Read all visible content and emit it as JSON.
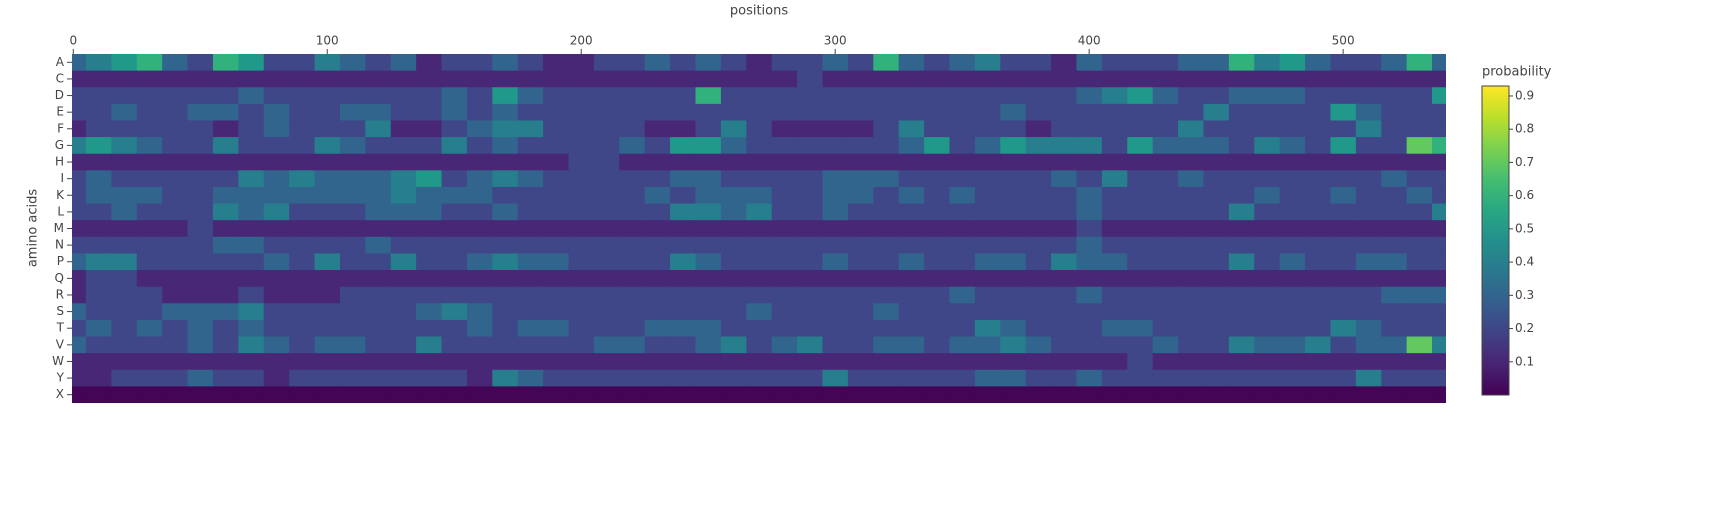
{
  "chart_data": {
    "type": "heatmap",
    "xlabel": "positions",
    "ylabel": "amino acids",
    "colorbar_title": "probability",
    "colorscale": "Viridis",
    "xlim": [
      -0.5,
      540.5
    ],
    "xticks": [
      0,
      100,
      200,
      300,
      400,
      500
    ],
    "zlim": [
      0,
      0.93
    ],
    "colorbar_ticks": [
      0.1,
      0.2,
      0.3,
      0.4,
      0.5,
      0.6,
      0.7,
      0.8,
      0.9
    ],
    "x": [
      0,
      10,
      20,
      30,
      40,
      50,
      60,
      70,
      80,
      90,
      100,
      110,
      120,
      130,
      140,
      150,
      160,
      170,
      180,
      190,
      200,
      210,
      220,
      230,
      240,
      250,
      260,
      270,
      280,
      290,
      300,
      310,
      320,
      330,
      340,
      350,
      360,
      370,
      380,
      390,
      400,
      410,
      420,
      430,
      440,
      450,
      460,
      470,
      480,
      490,
      500,
      510,
      520,
      530,
      540
    ],
    "y": [
      "A",
      "C",
      "D",
      "E",
      "F",
      "G",
      "H",
      "I",
      "K",
      "L",
      "M",
      "N",
      "P",
      "Q",
      "R",
      "S",
      "T",
      "V",
      "W",
      "Y",
      "X"
    ],
    "z": [
      [
        0.3,
        0.4,
        0.5,
        0.6,
        0.3,
        0.2,
        0.6,
        0.5,
        0.2,
        0.2,
        0.4,
        0.3,
        0.2,
        0.3,
        0.1,
        0.2,
        0.2,
        0.3,
        0.2,
        0.1,
        0.1,
        0.2,
        0.2,
        0.3,
        0.2,
        0.3,
        0.2,
        0.1,
        0.2,
        0.2,
        0.3,
        0.2,
        0.6,
        0.3,
        0.2,
        0.3,
        0.4,
        0.2,
        0.2,
        0.1,
        0.3,
        0.2,
        0.2,
        0.2,
        0.3,
        0.3,
        0.6,
        0.4,
        0.5,
        0.3,
        0.2,
        0.2,
        0.3,
        0.6,
        0.3
      ],
      [
        0.1,
        0.1,
        0.1,
        0.1,
        0.1,
        0.1,
        0.1,
        0.1,
        0.1,
        0.1,
        0.1,
        0.1,
        0.1,
        0.1,
        0.1,
        0.1,
        0.1,
        0.1,
        0.1,
        0.1,
        0.1,
        0.1,
        0.1,
        0.1,
        0.1,
        0.1,
        0.1,
        0.1,
        0.1,
        0.2,
        0.1,
        0.1,
        0.1,
        0.1,
        0.1,
        0.1,
        0.1,
        0.1,
        0.1,
        0.1,
        0.1,
        0.1,
        0.1,
        0.1,
        0.1,
        0.1,
        0.1,
        0.1,
        0.1,
        0.1,
        0.1,
        0.1,
        0.1,
        0.1,
        0.1
      ],
      [
        0.2,
        0.2,
        0.2,
        0.2,
        0.2,
        0.2,
        0.2,
        0.3,
        0.2,
        0.2,
        0.2,
        0.2,
        0.2,
        0.2,
        0.2,
        0.3,
        0.2,
        0.5,
        0.3,
        0.2,
        0.2,
        0.2,
        0.2,
        0.2,
        0.2,
        0.6,
        0.2,
        0.2,
        0.2,
        0.2,
        0.2,
        0.2,
        0.2,
        0.2,
        0.2,
        0.2,
        0.2,
        0.2,
        0.2,
        0.2,
        0.3,
        0.4,
        0.5,
        0.3,
        0.2,
        0.2,
        0.3,
        0.3,
        0.3,
        0.2,
        0.2,
        0.2,
        0.2,
        0.2,
        0.5
      ],
      [
        0.2,
        0.2,
        0.3,
        0.2,
        0.2,
        0.3,
        0.3,
        0.2,
        0.3,
        0.2,
        0.2,
        0.3,
        0.3,
        0.2,
        0.2,
        0.3,
        0.2,
        0.3,
        0.2,
        0.2,
        0.2,
        0.2,
        0.2,
        0.2,
        0.2,
        0.2,
        0.2,
        0.2,
        0.2,
        0.2,
        0.2,
        0.2,
        0.2,
        0.2,
        0.2,
        0.2,
        0.2,
        0.3,
        0.2,
        0.2,
        0.2,
        0.2,
        0.2,
        0.2,
        0.2,
        0.4,
        0.2,
        0.2,
        0.2,
        0.2,
        0.5,
        0.3,
        0.2,
        0.2,
        0.2
      ],
      [
        0.1,
        0.2,
        0.2,
        0.2,
        0.2,
        0.2,
        0.1,
        0.2,
        0.3,
        0.2,
        0.2,
        0.2,
        0.4,
        0.1,
        0.1,
        0.2,
        0.3,
        0.4,
        0.4,
        0.2,
        0.2,
        0.2,
        0.2,
        0.1,
        0.1,
        0.2,
        0.4,
        0.2,
        0.1,
        0.1,
        0.1,
        0.1,
        0.2,
        0.4,
        0.2,
        0.2,
        0.2,
        0.2,
        0.1,
        0.2,
        0.2,
        0.2,
        0.2,
        0.2,
        0.4,
        0.2,
        0.2,
        0.2,
        0.2,
        0.2,
        0.2,
        0.4,
        0.2,
        0.2,
        0.2
      ],
      [
        0.4,
        0.5,
        0.4,
        0.3,
        0.2,
        0.2,
        0.4,
        0.2,
        0.2,
        0.2,
        0.4,
        0.3,
        0.2,
        0.2,
        0.2,
        0.4,
        0.2,
        0.3,
        0.2,
        0.2,
        0.2,
        0.2,
        0.3,
        0.2,
        0.5,
        0.5,
        0.3,
        0.2,
        0.2,
        0.2,
        0.2,
        0.2,
        0.2,
        0.3,
        0.5,
        0.2,
        0.3,
        0.5,
        0.4,
        0.4,
        0.4,
        0.2,
        0.5,
        0.3,
        0.3,
        0.3,
        0.2,
        0.4,
        0.3,
        0.2,
        0.5,
        0.2,
        0.2,
        0.7,
        0.6
      ],
      [
        0.1,
        0.1,
        0.1,
        0.1,
        0.1,
        0.1,
        0.1,
        0.1,
        0.1,
        0.1,
        0.1,
        0.1,
        0.1,
        0.1,
        0.1,
        0.1,
        0.1,
        0.1,
        0.1,
        0.1,
        0.2,
        0.2,
        0.1,
        0.1,
        0.1,
        0.1,
        0.1,
        0.1,
        0.1,
        0.1,
        0.1,
        0.1,
        0.1,
        0.1,
        0.1,
        0.1,
        0.1,
        0.1,
        0.1,
        0.1,
        0.1,
        0.1,
        0.1,
        0.1,
        0.1,
        0.1,
        0.1,
        0.1,
        0.1,
        0.1,
        0.1,
        0.1,
        0.1,
        0.1,
        0.1
      ],
      [
        0.2,
        0.3,
        0.2,
        0.2,
        0.2,
        0.2,
        0.2,
        0.4,
        0.3,
        0.4,
        0.3,
        0.3,
        0.3,
        0.4,
        0.5,
        0.2,
        0.3,
        0.4,
        0.3,
        0.2,
        0.2,
        0.2,
        0.2,
        0.2,
        0.3,
        0.3,
        0.2,
        0.2,
        0.2,
        0.2,
        0.3,
        0.3,
        0.3,
        0.2,
        0.2,
        0.2,
        0.2,
        0.2,
        0.2,
        0.3,
        0.2,
        0.4,
        0.2,
        0.2,
        0.3,
        0.2,
        0.2,
        0.2,
        0.2,
        0.2,
        0.2,
        0.2,
        0.3,
        0.2,
        0.2
      ],
      [
        0.2,
        0.3,
        0.3,
        0.3,
        0.2,
        0.2,
        0.3,
        0.3,
        0.3,
        0.3,
        0.3,
        0.3,
        0.3,
        0.4,
        0.3,
        0.3,
        0.3,
        0.2,
        0.2,
        0.2,
        0.2,
        0.2,
        0.2,
        0.3,
        0.2,
        0.3,
        0.3,
        0.3,
        0.2,
        0.2,
        0.3,
        0.3,
        0.2,
        0.3,
        0.2,
        0.3,
        0.2,
        0.2,
        0.2,
        0.2,
        0.3,
        0.2,
        0.2,
        0.2,
        0.2,
        0.2,
        0.2,
        0.3,
        0.2,
        0.2,
        0.3,
        0.2,
        0.2,
        0.3,
        0.2
      ],
      [
        0.2,
        0.2,
        0.3,
        0.2,
        0.2,
        0.2,
        0.4,
        0.3,
        0.4,
        0.2,
        0.2,
        0.2,
        0.3,
        0.3,
        0.3,
        0.2,
        0.2,
        0.3,
        0.2,
        0.2,
        0.2,
        0.2,
        0.2,
        0.2,
        0.4,
        0.4,
        0.3,
        0.4,
        0.2,
        0.2,
        0.3,
        0.2,
        0.2,
        0.2,
        0.2,
        0.2,
        0.2,
        0.2,
        0.2,
        0.2,
        0.3,
        0.2,
        0.2,
        0.2,
        0.2,
        0.2,
        0.4,
        0.2,
        0.2,
        0.2,
        0.2,
        0.2,
        0.2,
        0.2,
        0.4
      ],
      [
        0.1,
        0.1,
        0.1,
        0.1,
        0.1,
        0.2,
        0.1,
        0.1,
        0.1,
        0.1,
        0.1,
        0.1,
        0.1,
        0.1,
        0.1,
        0.1,
        0.1,
        0.1,
        0.1,
        0.1,
        0.1,
        0.1,
        0.1,
        0.1,
        0.1,
        0.1,
        0.1,
        0.1,
        0.1,
        0.1,
        0.1,
        0.1,
        0.1,
        0.1,
        0.1,
        0.1,
        0.1,
        0.1,
        0.1,
        0.1,
        0.2,
        0.1,
        0.1,
        0.1,
        0.1,
        0.1,
        0.1,
        0.1,
        0.1,
        0.1,
        0.1,
        0.1,
        0.1,
        0.1,
        0.1
      ],
      [
        0.2,
        0.2,
        0.2,
        0.2,
        0.2,
        0.2,
        0.3,
        0.3,
        0.2,
        0.2,
        0.2,
        0.2,
        0.3,
        0.2,
        0.2,
        0.2,
        0.2,
        0.2,
        0.2,
        0.2,
        0.2,
        0.2,
        0.2,
        0.2,
        0.2,
        0.2,
        0.2,
        0.2,
        0.2,
        0.2,
        0.2,
        0.2,
        0.2,
        0.2,
        0.2,
        0.2,
        0.2,
        0.2,
        0.2,
        0.2,
        0.3,
        0.2,
        0.2,
        0.2,
        0.2,
        0.2,
        0.2,
        0.2,
        0.2,
        0.2,
        0.2,
        0.2,
        0.2,
        0.2,
        0.2
      ],
      [
        0.3,
        0.4,
        0.4,
        0.2,
        0.2,
        0.2,
        0.2,
        0.2,
        0.3,
        0.2,
        0.4,
        0.2,
        0.2,
        0.4,
        0.2,
        0.2,
        0.3,
        0.4,
        0.3,
        0.3,
        0.2,
        0.2,
        0.2,
        0.2,
        0.4,
        0.3,
        0.2,
        0.2,
        0.2,
        0.2,
        0.3,
        0.2,
        0.2,
        0.3,
        0.2,
        0.2,
        0.3,
        0.3,
        0.2,
        0.4,
        0.3,
        0.3,
        0.2,
        0.2,
        0.2,
        0.2,
        0.4,
        0.2,
        0.3,
        0.2,
        0.2,
        0.3,
        0.3,
        0.2,
        0.2
      ],
      [
        0.1,
        0.2,
        0.2,
        0.1,
        0.1,
        0.1,
        0.1,
        0.1,
        0.1,
        0.1,
        0.1,
        0.1,
        0.1,
        0.1,
        0.1,
        0.1,
        0.1,
        0.1,
        0.1,
        0.1,
        0.1,
        0.1,
        0.1,
        0.1,
        0.1,
        0.1,
        0.1,
        0.1,
        0.1,
        0.1,
        0.1,
        0.1,
        0.1,
        0.1,
        0.1,
        0.1,
        0.1,
        0.1,
        0.1,
        0.1,
        0.1,
        0.1,
        0.1,
        0.1,
        0.1,
        0.1,
        0.1,
        0.1,
        0.1,
        0.1,
        0.1,
        0.1,
        0.1,
        0.1,
        0.1
      ],
      [
        0.1,
        0.2,
        0.2,
        0.2,
        0.1,
        0.1,
        0.1,
        0.2,
        0.1,
        0.1,
        0.1,
        0.2,
        0.2,
        0.2,
        0.2,
        0.2,
        0.2,
        0.2,
        0.2,
        0.2,
        0.2,
        0.2,
        0.2,
        0.2,
        0.2,
        0.2,
        0.2,
        0.2,
        0.2,
        0.2,
        0.2,
        0.2,
        0.2,
        0.2,
        0.2,
        0.3,
        0.2,
        0.2,
        0.2,
        0.2,
        0.3,
        0.2,
        0.2,
        0.2,
        0.2,
        0.2,
        0.2,
        0.2,
        0.2,
        0.2,
        0.2,
        0.2,
        0.3,
        0.3,
        0.3
      ],
      [
        0.3,
        0.2,
        0.2,
        0.2,
        0.3,
        0.3,
        0.3,
        0.4,
        0.2,
        0.2,
        0.2,
        0.2,
        0.2,
        0.2,
        0.3,
        0.4,
        0.3,
        0.2,
        0.2,
        0.2,
        0.2,
        0.2,
        0.2,
        0.2,
        0.2,
        0.2,
        0.2,
        0.3,
        0.2,
        0.2,
        0.2,
        0.2,
        0.3,
        0.2,
        0.2,
        0.2,
        0.2,
        0.2,
        0.2,
        0.2,
        0.2,
        0.2,
        0.2,
        0.2,
        0.2,
        0.2,
        0.2,
        0.2,
        0.2,
        0.2,
        0.2,
        0.2,
        0.2,
        0.2,
        0.2
      ],
      [
        0.2,
        0.3,
        0.2,
        0.3,
        0.2,
        0.3,
        0.2,
        0.3,
        0.2,
        0.2,
        0.2,
        0.2,
        0.2,
        0.2,
        0.2,
        0.2,
        0.3,
        0.2,
        0.3,
        0.3,
        0.2,
        0.2,
        0.2,
        0.3,
        0.3,
        0.3,
        0.2,
        0.2,
        0.2,
        0.2,
        0.2,
        0.2,
        0.2,
        0.2,
        0.2,
        0.2,
        0.4,
        0.3,
        0.2,
        0.2,
        0.2,
        0.3,
        0.3,
        0.2,
        0.2,
        0.2,
        0.2,
        0.2,
        0.2,
        0.2,
        0.4,
        0.3,
        0.2,
        0.2,
        0.2
      ],
      [
        0.3,
        0.2,
        0.2,
        0.2,
        0.2,
        0.3,
        0.2,
        0.4,
        0.3,
        0.2,
        0.3,
        0.3,
        0.2,
        0.2,
        0.4,
        0.2,
        0.2,
        0.2,
        0.2,
        0.2,
        0.2,
        0.3,
        0.3,
        0.2,
        0.2,
        0.3,
        0.4,
        0.2,
        0.3,
        0.4,
        0.2,
        0.2,
        0.3,
        0.3,
        0.2,
        0.3,
        0.3,
        0.4,
        0.3,
        0.2,
        0.2,
        0.2,
        0.2,
        0.3,
        0.2,
        0.2,
        0.4,
        0.3,
        0.3,
        0.4,
        0.2,
        0.3,
        0.3,
        0.7,
        0.4
      ],
      [
        0.1,
        0.1,
        0.1,
        0.1,
        0.1,
        0.1,
        0.1,
        0.1,
        0.1,
        0.1,
        0.1,
        0.1,
        0.1,
        0.1,
        0.1,
        0.1,
        0.1,
        0.1,
        0.1,
        0.1,
        0.1,
        0.1,
        0.1,
        0.1,
        0.1,
        0.1,
        0.1,
        0.1,
        0.1,
        0.1,
        0.1,
        0.1,
        0.1,
        0.1,
        0.1,
        0.1,
        0.1,
        0.1,
        0.1,
        0.1,
        0.1,
        0.1,
        0.2,
        0.1,
        0.1,
        0.1,
        0.1,
        0.1,
        0.1,
        0.1,
        0.1,
        0.1,
        0.1,
        0.1,
        0.1
      ],
      [
        0.1,
        0.1,
        0.2,
        0.2,
        0.2,
        0.3,
        0.2,
        0.2,
        0.1,
        0.2,
        0.2,
        0.2,
        0.2,
        0.2,
        0.2,
        0.2,
        0.1,
        0.4,
        0.3,
        0.2,
        0.2,
        0.2,
        0.2,
        0.2,
        0.2,
        0.2,
        0.2,
        0.2,
        0.2,
        0.2,
        0.4,
        0.2,
        0.2,
        0.2,
        0.2,
        0.2,
        0.3,
        0.3,
        0.2,
        0.2,
        0.3,
        0.2,
        0.2,
        0.2,
        0.2,
        0.2,
        0.2,
        0.2,
        0.2,
        0.2,
        0.2,
        0.4,
        0.2,
        0.2,
        0.2
      ],
      [
        0.01,
        0.01,
        0.01,
        0.01,
        0.01,
        0.01,
        0.01,
        0.01,
        0.01,
        0.01,
        0.01,
        0.01,
        0.01,
        0.01,
        0.01,
        0.01,
        0.01,
        0.01,
        0.01,
        0.01,
        0.01,
        0.01,
        0.01,
        0.01,
        0.01,
        0.01,
        0.01,
        0.01,
        0.01,
        0.01,
        0.01,
        0.01,
        0.01,
        0.01,
        0.01,
        0.01,
        0.01,
        0.01,
        0.01,
        0.01,
        0.01,
        0.01,
        0.01,
        0.01,
        0.01,
        0.01,
        0.01,
        0.01,
        0.01,
        0.01,
        0.01,
        0.01,
        0.01,
        0.01,
        0.01
      ]
    ]
  }
}
